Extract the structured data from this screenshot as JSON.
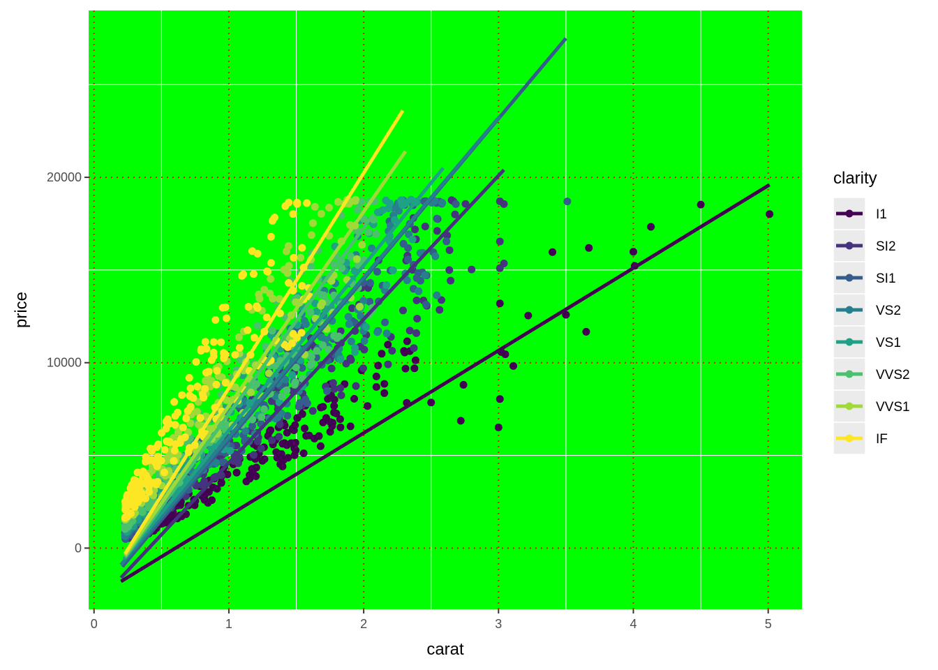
{
  "chart_data": {
    "type": "scatter",
    "xlabel": "carat",
    "ylabel": "price",
    "xlim": [
      -0.04,
      5.25
    ],
    "ylim": [
      -3300,
      29000
    ],
    "x_ticks": [
      0,
      1,
      2,
      3,
      4,
      5
    ],
    "y_ticks": [
      0,
      10000,
      20000
    ],
    "x_tick_labels": [
      "0",
      "1",
      "2",
      "3",
      "4",
      "5"
    ],
    "y_tick_labels": [
      "0",
      "10000",
      "20000"
    ],
    "grid": true,
    "panel_background": "#00ff00",
    "major_grid_color": "#ff0000",
    "major_grid_style": "dotted",
    "minor_grid_color": "#ffffff",
    "legend": {
      "title": "clarity",
      "placement": "right",
      "entries": [
        "I1",
        "SI2",
        "SI1",
        "VS2",
        "VS1",
        "VVS2",
        "VVS1",
        "IF"
      ]
    },
    "colors": {
      "I1": "#440154",
      "SI2": "#46337e",
      "SI1": "#365c8d",
      "VS2": "#277f8e",
      "VS1": "#1fa187",
      "VVS2": "#4ac16d",
      "VVS1": "#a0da39",
      "IF": "#fde725"
    },
    "fit_lines": [
      {
        "name": "I1",
        "x": [
          0.2,
          5.01
        ],
        "y": [
          -1800,
          19600
        ]
      },
      {
        "name": "SI2",
        "x": [
          0.2,
          3.04
        ],
        "y": [
          -1600,
          20400
        ]
      },
      {
        "name": "SI1",
        "x": [
          0.21,
          3.5
        ],
        "y": [
          -1000,
          27500
        ]
      },
      {
        "name": "VS2",
        "x": [
          0.2,
          3.01
        ],
        "y": [
          -900,
          23300
        ]
      },
      {
        "name": "VS1",
        "x": [
          0.22,
          2.59
        ],
        "y": [
          -600,
          20500
        ]
      },
      {
        "name": "VVS2",
        "x": [
          0.23,
          2.07
        ],
        "y": [
          -500,
          18000
        ]
      },
      {
        "name": "VVS1",
        "x": [
          0.23,
          2.31
        ],
        "y": [
          -400,
          21400
        ]
      },
      {
        "name": "IF",
        "x": [
          0.23,
          2.29
        ],
        "y": [
          -300,
          23600
        ]
      }
    ],
    "highlight_points": [
      {
        "series": "I1",
        "x": 5.01,
        "y": 18018
      },
      {
        "series": "I1",
        "x": 4.5,
        "y": 18531
      },
      {
        "series": "I1",
        "x": 4.13,
        "y": 17329
      },
      {
        "series": "I1",
        "x": 4.01,
        "y": 15223
      },
      {
        "series": "I1",
        "x": 4.0,
        "y": 15984
      },
      {
        "series": "I1",
        "x": 3.67,
        "y": 16193
      },
      {
        "series": "I1",
        "x": 3.65,
        "y": 11668
      },
      {
        "series": "I1",
        "x": 3.5,
        "y": 12587
      },
      {
        "series": "I1",
        "x": 3.4,
        "y": 15964
      },
      {
        "series": "I1",
        "x": 3.22,
        "y": 12545
      },
      {
        "series": "I1",
        "x": 3.11,
        "y": 9823
      },
      {
        "series": "I1",
        "x": 3.05,
        "y": 10453
      },
      {
        "series": "I1",
        "x": 3.02,
        "y": 10577
      },
      {
        "series": "I1",
        "x": 3.01,
        "y": 8040
      },
      {
        "series": "I1",
        "x": 3.0,
        "y": 6512
      },
      {
        "series": "I1",
        "x": 3.01,
        "y": 13200
      },
      {
        "series": "I1",
        "x": 2.74,
        "y": 8807
      },
      {
        "series": "I1",
        "x": 2.72,
        "y": 6870
      },
      {
        "series": "I1",
        "x": 2.5,
        "y": 7854
      },
      {
        "series": "SI2",
        "x": 3.04,
        "y": 18559
      },
      {
        "series": "SI2",
        "x": 3.01,
        "y": 18710
      },
      {
        "series": "SI2",
        "x": 3.01,
        "y": 16538
      },
      {
        "series": "SI2",
        "x": 3.01,
        "y": 15100
      },
      {
        "series": "SI2",
        "x": 3.04,
        "y": 15354
      },
      {
        "series": "SI2",
        "x": 2.8,
        "y": 15030
      },
      {
        "series": "SI1",
        "x": 3.51,
        "y": 18701
      }
    ],
    "clouds": [
      {
        "series": "I1",
        "x_range": [
          0.3,
          2.4
        ],
        "slope": 4600,
        "intercept": -800,
        "spread": 0.22
      },
      {
        "series": "SI2",
        "x_range": [
          0.25,
          2.8
        ],
        "slope": 6400,
        "intercept": -900,
        "spread": 0.25
      },
      {
        "series": "SI1",
        "x_range": [
          0.23,
          2.7
        ],
        "slope": 7000,
        "intercept": -800,
        "spread": 0.25
      },
      {
        "series": "VS2",
        "x_range": [
          0.23,
          2.6
        ],
        "slope": 7400,
        "intercept": -700,
        "spread": 0.25
      },
      {
        "series": "VS1",
        "x_range": [
          0.23,
          2.4
        ],
        "slope": 7600,
        "intercept": -600,
        "spread": 0.26
      },
      {
        "series": "VVS2",
        "x_range": [
          0.23,
          2.1
        ],
        "slope": 8200,
        "intercept": -500,
        "spread": 0.27
      },
      {
        "series": "VVS1",
        "x_range": [
          0.23,
          2.0
        ],
        "slope": 9200,
        "intercept": -400,
        "spread": 0.27
      },
      {
        "series": "IF",
        "x_range": [
          0.23,
          1.6
        ],
        "slope": 11000,
        "intercept": -400,
        "spread": 0.3
      }
    ]
  }
}
